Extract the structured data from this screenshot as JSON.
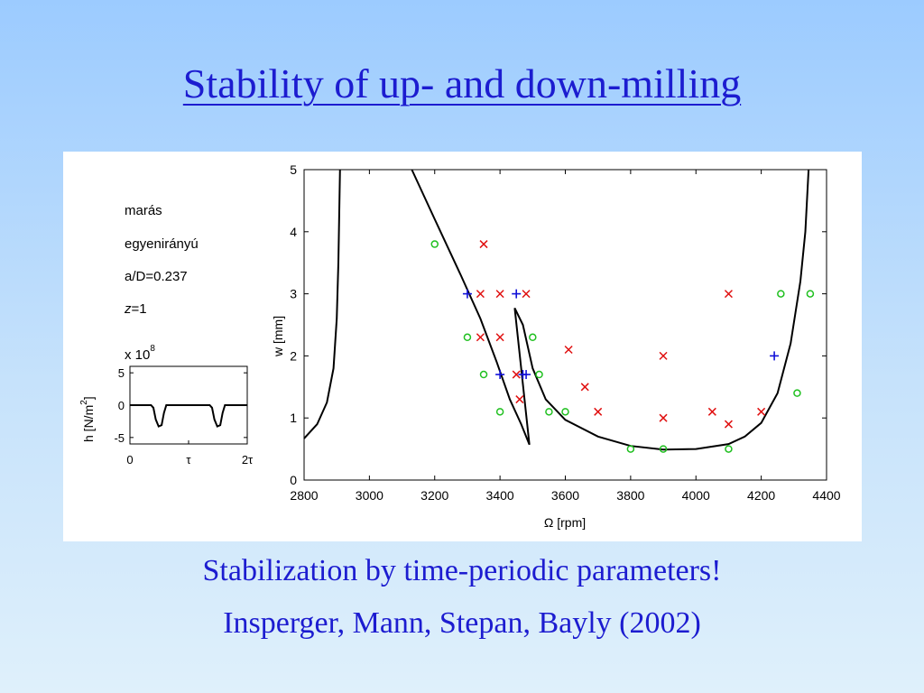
{
  "slide": {
    "title": "Stability of up- and down-milling",
    "caption_line1": "Stabilization by time-periodic parameters!",
    "caption_line2": "Insperger, Mann, Stepan, Bayly (2002)"
  },
  "annotations": {
    "line1": "marás",
    "line2": "egyenirányú",
    "line3": "a/D=0.237",
    "line4_italic": "z",
    "line4_rest": "=1",
    "scale_base": "x 10",
    "scale_exp": "8"
  },
  "colors": {
    "title_text": "#1c1cd0",
    "cross": "#e01010",
    "plus": "#1010d8",
    "circle": "#20c020",
    "curve": "#000000"
  },
  "chart_data": [
    {
      "type": "line",
      "title": "",
      "xlabel": "Ω [rpm]",
      "ylabel": "w [mm]",
      "xlim": [
        2800,
        4400
      ],
      "ylim": [
        0,
        5
      ],
      "xticks": [
        2800,
        3000,
        3200,
        3400,
        3600,
        3800,
        4000,
        4200,
        4400
      ],
      "yticks": [
        0,
        1,
        2,
        3,
        4,
        5
      ],
      "grid": false,
      "series": [
        {
          "marker": "line",
          "points": [
            [
              2800,
              0.67
            ],
            [
              2840,
              0.9
            ],
            [
              2870,
              1.25
            ],
            [
              2890,
              1.8
            ],
            [
              2900,
              2.6
            ],
            [
              2905,
              3.5
            ],
            [
              2910,
              5.0
            ]
          ]
        },
        {
          "marker": "line",
          "points": [
            [
              3130,
              5.0
            ],
            [
              3200,
              4.2
            ],
            [
              3280,
              3.3
            ],
            [
              3340,
              2.6
            ],
            [
              3390,
              1.9
            ],
            [
              3430,
              1.3
            ],
            [
              3465,
              0.9
            ],
            [
              3490,
              0.57
            ],
            [
              3445,
              2.77
            ],
            [
              3470,
              2.5
            ],
            [
              3500,
              1.8
            ],
            [
              3540,
              1.3
            ],
            [
              3600,
              0.97
            ],
            [
              3700,
              0.7
            ],
            [
              3800,
              0.55
            ],
            [
              3900,
              0.49
            ],
            [
              4000,
              0.5
            ],
            [
              4100,
              0.58
            ],
            [
              4150,
              0.7
            ],
            [
              4200,
              0.92
            ],
            [
              4250,
              1.4
            ],
            [
              4290,
              2.2
            ],
            [
              4320,
              3.2
            ],
            [
              4335,
              4.0
            ],
            [
              4345,
              5.0
            ]
          ]
        },
        {
          "marker": "x",
          "points": [
            [
              3350,
              3.8
            ],
            [
              3340,
              3.0
            ],
            [
              3400,
              3.0
            ],
            [
              3480,
              3.0
            ],
            [
              3340,
              2.3
            ],
            [
              3400,
              2.3
            ],
            [
              3450,
              1.7
            ],
            [
              3460,
              1.3
            ],
            [
              3610,
              2.1
            ],
            [
              3660,
              1.5
            ],
            [
              3700,
              1.1
            ],
            [
              3900,
              2.0
            ],
            [
              3900,
              1.0
            ],
            [
              4050,
              1.1
            ],
            [
              4100,
              0.9
            ],
            [
              4100,
              3.0
            ],
            [
              4200,
              1.1
            ]
          ]
        },
        {
          "marker": "plus",
          "points": [
            [
              3300,
              3.0
            ],
            [
              3450,
              3.0
            ],
            [
              3400,
              1.7
            ],
            [
              3470,
              1.7
            ],
            [
              3480,
              1.7
            ],
            [
              4240,
              2.0
            ]
          ]
        },
        {
          "marker": "circle",
          "points": [
            [
              3200,
              3.8
            ],
            [
              3300,
              2.3
            ],
            [
              3500,
              2.3
            ],
            [
              3350,
              1.7
            ],
            [
              3520,
              1.7
            ],
            [
              3400,
              1.1
            ],
            [
              3550,
              1.1
            ],
            [
              3600,
              1.1
            ],
            [
              3800,
              0.5
            ],
            [
              3900,
              0.5
            ],
            [
              4100,
              0.5
            ],
            [
              4260,
              3.0
            ],
            [
              4350,
              3.0
            ],
            [
              4310,
              1.4
            ]
          ]
        }
      ]
    },
    {
      "type": "line",
      "title": "",
      "xlabel": "",
      "ylabel": "h [N/m",
      "ylabel_sup": "2",
      "ylabel_end": "]",
      "ylim": [
        -6,
        6
      ],
      "yticks": [
        5,
        0,
        -5
      ],
      "xtick_labels": [
        "0",
        "τ",
        "2τ"
      ],
      "grid": false,
      "series": [
        {
          "marker": "line",
          "points": [
            [
              0,
              0
            ],
            [
              0.18,
              0
            ],
            [
              0.2,
              -0.4
            ],
            [
              0.22,
              -2.2
            ],
            [
              0.245,
              -3.3
            ],
            [
              0.27,
              -3.1
            ],
            [
              0.29,
              -1.2
            ],
            [
              0.31,
              0
            ],
            [
              0.68,
              0
            ],
            [
              0.7,
              -0.4
            ],
            [
              0.72,
              -2.2
            ],
            [
              0.745,
              -3.3
            ],
            [
              0.77,
              -3.1
            ],
            [
              0.79,
              -1.2
            ],
            [
              0.81,
              0
            ],
            [
              1,
              0
            ]
          ]
        }
      ]
    }
  ]
}
